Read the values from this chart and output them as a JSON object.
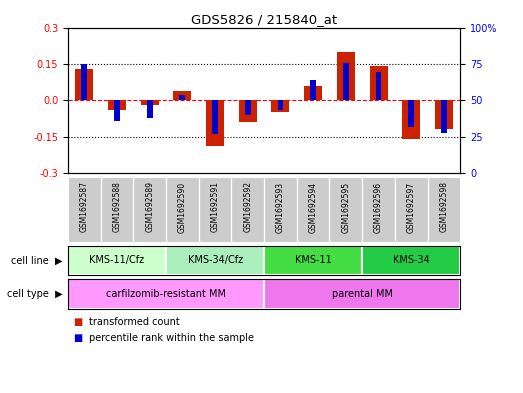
{
  "title": "GDS5826 / 215840_at",
  "samples": [
    "GSM1692587",
    "GSM1692588",
    "GSM1692589",
    "GSM1692590",
    "GSM1692591",
    "GSM1692592",
    "GSM1692593",
    "GSM1692594",
    "GSM1692595",
    "GSM1692596",
    "GSM1692597",
    "GSM1692598"
  ],
  "transformed_count": [
    0.13,
    -0.04,
    -0.02,
    0.04,
    -0.19,
    -0.09,
    -0.05,
    0.06,
    0.2,
    0.14,
    -0.16,
    -0.12
  ],
  "percentile_rank_mapped": [
    0.15,
    -0.085,
    -0.075,
    0.02,
    -0.14,
    -0.06,
    -0.04,
    0.085,
    0.155,
    0.115,
    -0.11,
    -0.135
  ],
  "cell_line_groups": [
    {
      "label": "KMS-11/Cfz",
      "start": 0,
      "end": 3
    },
    {
      "label": "KMS-34/Cfz",
      "start": 3,
      "end": 6
    },
    {
      "label": "KMS-11",
      "start": 6,
      "end": 9
    },
    {
      "label": "KMS-34",
      "start": 9,
      "end": 12
    }
  ],
  "cell_type_groups": [
    {
      "label": "carfilzomib-resistant MM",
      "start": 0,
      "end": 6
    },
    {
      "label": "parental MM",
      "start": 6,
      "end": 12
    }
  ],
  "ylim": [
    -0.3,
    0.3
  ],
  "yticks_left": [
    -0.3,
    -0.15,
    0.0,
    0.15,
    0.3
  ],
  "yticks_right": [
    0,
    25,
    50,
    75,
    100
  ],
  "hlines": [
    -0.15,
    0.0,
    0.15
  ],
  "bar_color_red": "#cc2200",
  "bar_color_blue": "#0000cc",
  "bg_color": "#ffffff",
  "sample_bg": "#cccccc",
  "cell_line_colors": [
    "#ccffcc",
    "#aaeebb",
    "#44dd44",
    "#22cc44"
  ],
  "cell_type_colors": [
    "#ff99ff",
    "#ee77ee"
  ],
  "label_fontsize": 7,
  "tick_fontsize": 7
}
